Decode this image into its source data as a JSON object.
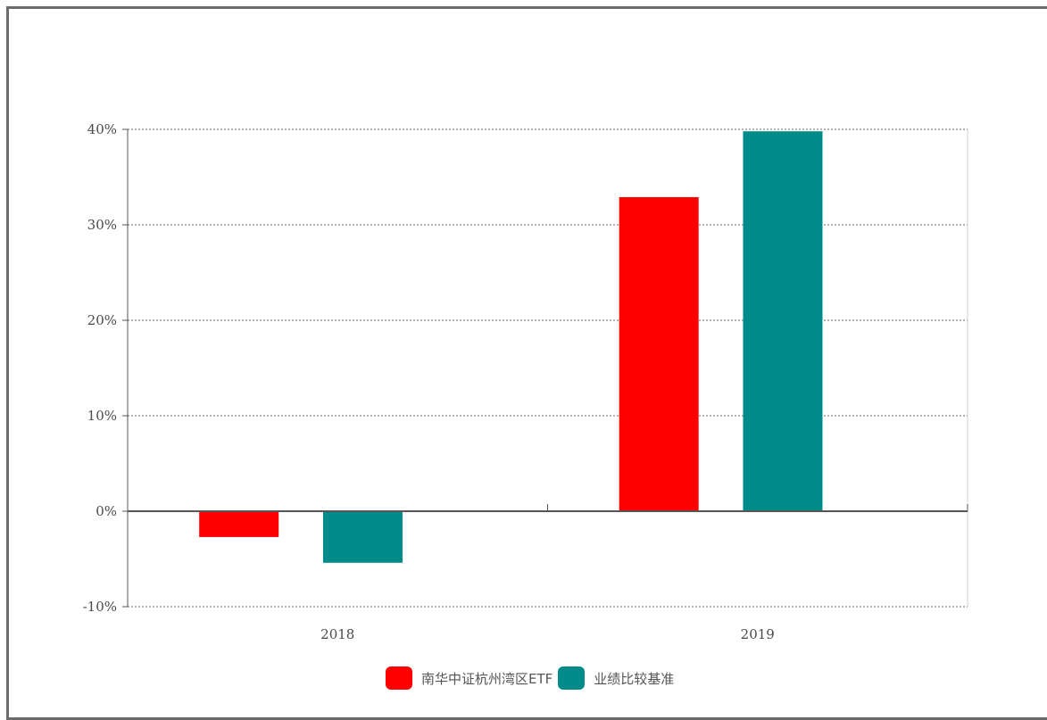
{
  "chart_data": {
    "type": "bar",
    "categories": [
      "2018",
      "2019"
    ],
    "series": [
      {
        "name": "南华中证杭州湾区ETF",
        "color": "#ff0000",
        "values": [
          -2.7,
          32.9
        ]
      },
      {
        "name": "业绩比较基准",
        "color": "#008b8b",
        "values": [
          -5.4,
          39.8
        ]
      }
    ],
    "y_ticks": [
      "-10%",
      "0%",
      "10%",
      "20%",
      "30%",
      "40%"
    ],
    "y_tick_values": [
      -10,
      0,
      10,
      20,
      30,
      40
    ],
    "ylim": [
      -10,
      40
    ],
    "grid": true,
    "legend_position": "bottom-center"
  }
}
